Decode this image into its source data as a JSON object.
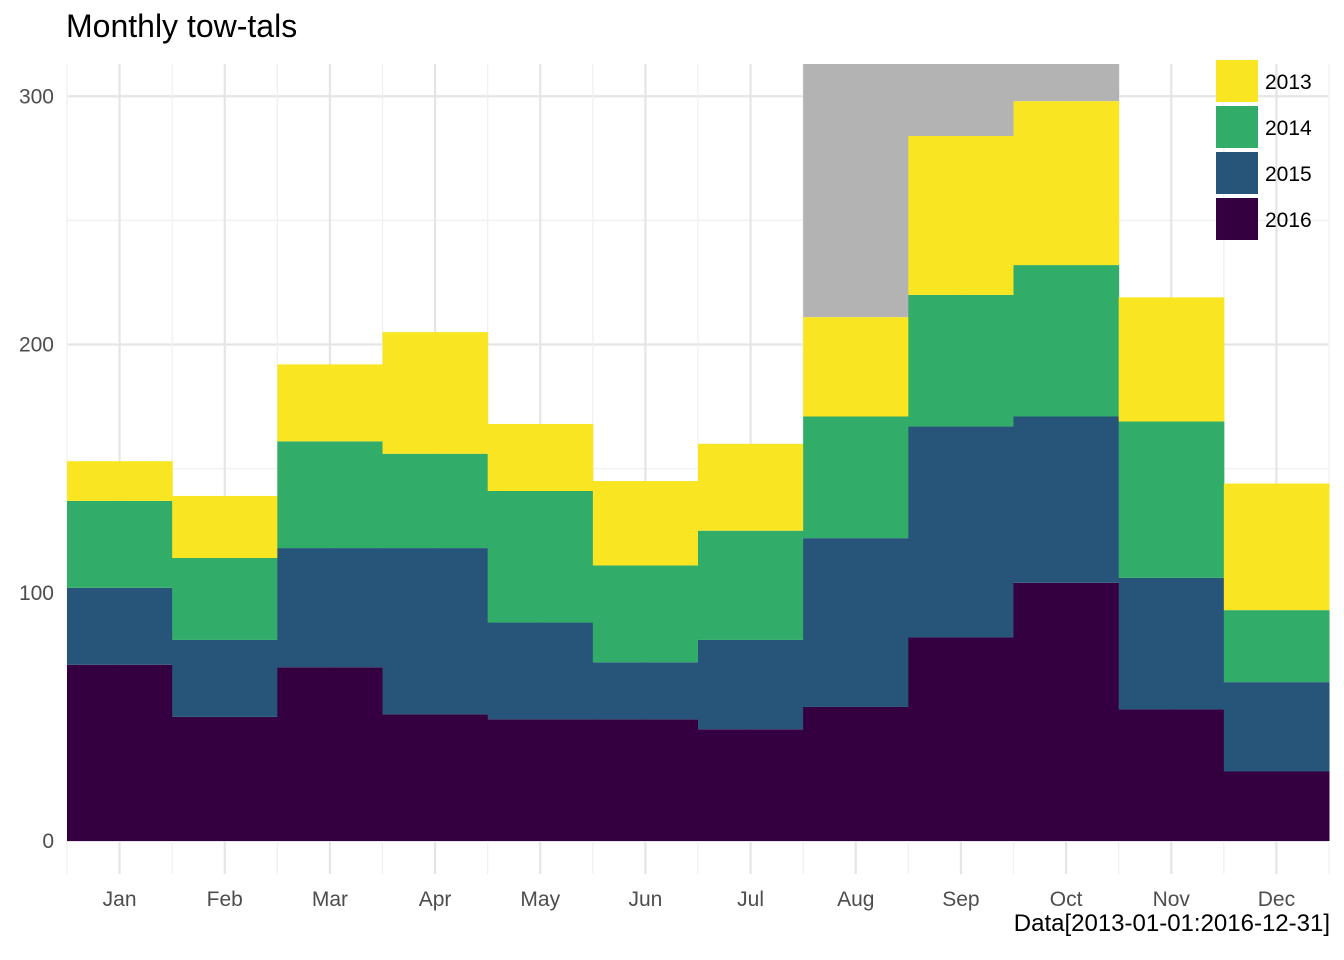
{
  "chart_data": {
    "type": "bar",
    "stacked": true,
    "title": "Monthly tow-tals",
    "caption": "Data[2013-01-01:2016-12-31]",
    "xlabel": "",
    "ylabel": "",
    "categories": [
      "Jan",
      "Feb",
      "Mar",
      "Apr",
      "May",
      "Jun",
      "Jul",
      "Aug",
      "Sep",
      "Oct",
      "Nov",
      "Dec"
    ],
    "ylim": [
      0,
      313
    ],
    "yticks": [
      0,
      100,
      200,
      300
    ],
    "grid": true,
    "legend_position": "top-right",
    "series": [
      {
        "name": "2016",
        "color": "#35003f",
        "values": [
          71,
          50,
          70,
          51,
          49,
          49,
          45,
          54,
          82,
          104,
          53,
          28
        ]
      },
      {
        "name": "2015",
        "color": "#27557a",
        "values": [
          31,
          31,
          48,
          67,
          39,
          23,
          36,
          68,
          85,
          67,
          53,
          36
        ]
      },
      {
        "name": "2014",
        "color": "#31ac69",
        "values": [
          35,
          33,
          43,
          38,
          53,
          39,
          44,
          49,
          53,
          61,
          63,
          29
        ]
      },
      {
        "name": "2013",
        "color": "#fae522",
        "values": [
          16,
          25,
          31,
          49,
          27,
          34,
          35,
          40,
          64,
          66,
          50,
          51
        ]
      }
    ],
    "background_shading": {
      "color": "#b3b3b3",
      "categories": [
        "Aug",
        "Sep",
        "Oct"
      ]
    }
  }
}
